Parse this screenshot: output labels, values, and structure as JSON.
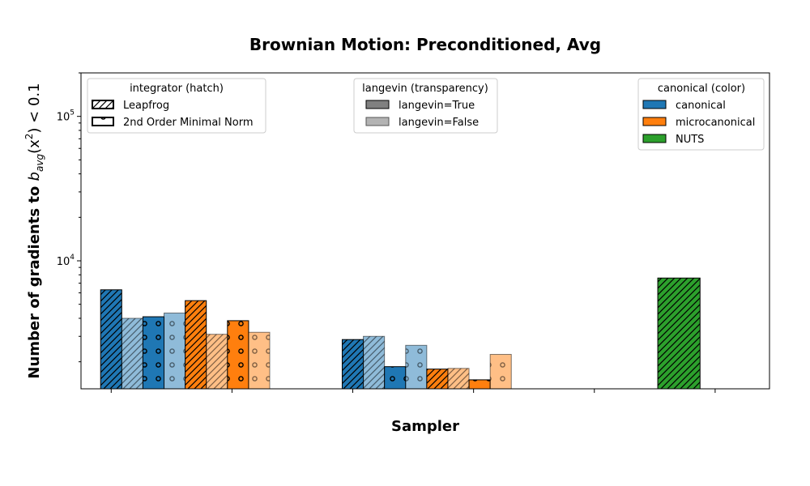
{
  "chart_data": {
    "type": "bar",
    "title": "Brownian Motion: Preconditioned, Avg",
    "xlabel": "Sampler",
    "ylabel_prefix": "Number of gradients to ",
    "ylabel_math": "b",
    "ylabel_sub": "avg",
    "ylabel_suffix_open": "(x",
    "ylabel_sup": "2",
    "ylabel_suffix_close": ") < 0.1",
    "yscale": "log",
    "ylim": [
      1300,
      200000
    ],
    "yticks": [
      {
        "value": 10000,
        "base": "10",
        "exp": "4"
      },
      {
        "value": 100000,
        "base": "10",
        "exp": "5"
      }
    ],
    "colors": {
      "canonical": "#1f77b4",
      "microcanonical": "#ff7f0e",
      "NUTS": "#2ca02c"
    },
    "bars": [
      {
        "x": 0.0,
        "color": "canonical",
        "hatch": "leapfrog",
        "langevin": true,
        "value": 6300
      },
      {
        "x": 0.175,
        "color": "canonical",
        "hatch": "leapfrog",
        "langevin": false,
        "value": 4000
      },
      {
        "x": 0.35,
        "color": "canonical",
        "hatch": "minimal-norm",
        "langevin": true,
        "value": 4100
      },
      {
        "x": 0.525,
        "color": "canonical",
        "hatch": "minimal-norm",
        "langevin": false,
        "value": 4350
      },
      {
        "x": 0.7,
        "color": "microcanonical",
        "hatch": "leapfrog",
        "langevin": true,
        "value": 5300
      },
      {
        "x": 0.875,
        "color": "microcanonical",
        "hatch": "leapfrog",
        "langevin": false,
        "value": 3100
      },
      {
        "x": 1.05,
        "color": "microcanonical",
        "hatch": "minimal-norm",
        "langevin": true,
        "value": 3850
      },
      {
        "x": 1.225,
        "color": "microcanonical",
        "hatch": "minimal-norm",
        "langevin": false,
        "value": 3200
      },
      {
        "x": 2.0,
        "color": "canonical",
        "hatch": "leapfrog",
        "langevin": true,
        "value": 2850
      },
      {
        "x": 2.175,
        "color": "canonical",
        "hatch": "leapfrog",
        "langevin": false,
        "value": 3000
      },
      {
        "x": 2.35,
        "color": "canonical",
        "hatch": "minimal-norm",
        "langevin": true,
        "value": 1850
      },
      {
        "x": 2.525,
        "color": "canonical",
        "hatch": "minimal-norm",
        "langevin": false,
        "value": 2600
      },
      {
        "x": 2.7,
        "color": "microcanonical",
        "hatch": "leapfrog",
        "langevin": true,
        "value": 1780
      },
      {
        "x": 2.875,
        "color": "microcanonical",
        "hatch": "leapfrog",
        "langevin": false,
        "value": 1800
      },
      {
        "x": 3.05,
        "color": "microcanonical",
        "hatch": "minimal-norm",
        "langevin": true,
        "value": 1500
      },
      {
        "x": 3.225,
        "color": "microcanonical",
        "hatch": "minimal-norm",
        "langevin": false,
        "value": 2250
      },
      {
        "x": 4.7,
        "color": "NUTS",
        "hatch": "leapfrog",
        "langevin": true,
        "value": 7600,
        "width": 0.35
      }
    ],
    "xticks": [
      0,
      1,
      2,
      3,
      4,
      5
    ],
    "legends": [
      {
        "title": "integrator (hatch)",
        "placement": "upper-left",
        "entries": [
          {
            "label": "Leapfrog",
            "hatch": "leapfrog"
          },
          {
            "label": "2nd Order Minimal Norm",
            "hatch": "minimal-norm"
          }
        ]
      },
      {
        "title": "langevin (transparency)",
        "placement": "upper-center",
        "entries": [
          {
            "label": "langevin=True",
            "langevin": true
          },
          {
            "label": "langevin=False",
            "langevin": false
          }
        ]
      },
      {
        "title": "canonical (color)",
        "placement": "upper-right",
        "entries": [
          {
            "label": "canonical",
            "color": "canonical"
          },
          {
            "label": "microcanonical",
            "color": "microcanonical"
          },
          {
            "label": "NUTS",
            "color": "NUTS"
          }
        ]
      }
    ]
  }
}
